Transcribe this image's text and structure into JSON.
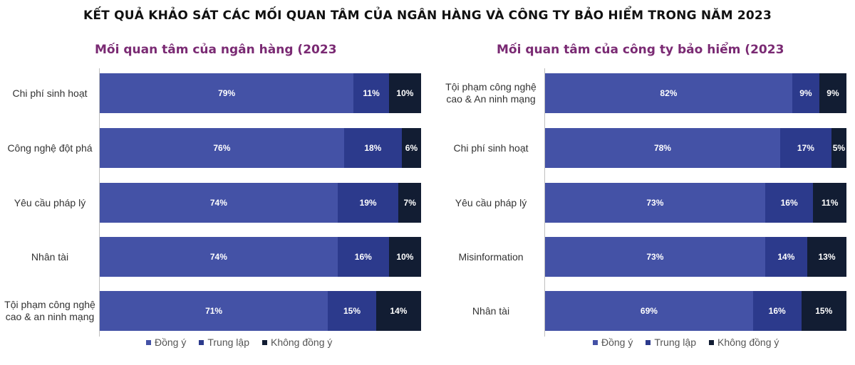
{
  "title": "KẾT QUẢ KHẢO SÁT CÁC MỐI QUAN TÂM CỦA NGÂN HÀNG VÀ CÔNG TY BẢO HIỂM TRONG NĂM 2023",
  "colors": {
    "agree": "#4452a6",
    "neutral": "#2c3a8c",
    "disagree": "#121d33",
    "subtitle": "#7a2a73"
  },
  "chart_data": [
    {
      "type": "bar",
      "orientation": "horizontal",
      "stacked": true,
      "title": "Mối quan tâm của ngân hàng (2023",
      "categories": [
        "Chi phí sinh hoạt",
        "Công nghệ đột phá",
        "Yêu cầu pháp lý",
        "Nhân tài",
        "Tội phạm công nghệ cao & an ninh mạng"
      ],
      "series": [
        {
          "name": "Đồng ý",
          "values": [
            79,
            76,
            74,
            74,
            71
          ]
        },
        {
          "name": "Trung lập",
          "values": [
            11,
            18,
            19,
            16,
            15
          ]
        },
        {
          "name": "Không đồng ý",
          "values": [
            10,
            6,
            7,
            10,
            14
          ]
        }
      ],
      "xlim": [
        0,
        100
      ],
      "unit": "%",
      "legend": "bottom"
    },
    {
      "type": "bar",
      "orientation": "horizontal",
      "stacked": true,
      "title": "Mối quan tâm của công ty bảo hiểm  (2023",
      "categories": [
        "Tội phạm công nghệ cao & An ninh mạng",
        "Chi phí sinh hoạt",
        "Yêu cầu pháp lý",
        "Misinformation",
        "Nhân tài"
      ],
      "series": [
        {
          "name": "Đồng ý",
          "values": [
            82,
            78,
            73,
            73,
            69
          ]
        },
        {
          "name": "Trung lập",
          "values": [
            9,
            17,
            16,
            14,
            16
          ]
        },
        {
          "name": "Không đồng ý",
          "values": [
            9,
            5,
            11,
            13,
            15
          ]
        }
      ],
      "xlim": [
        0,
        100
      ],
      "unit": "%",
      "legend": "bottom"
    }
  ]
}
